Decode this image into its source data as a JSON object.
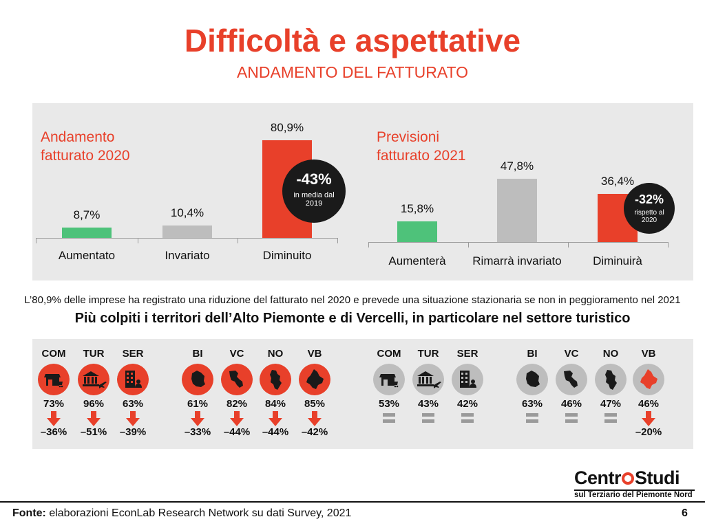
{
  "title": "Difficoltà e aspettative",
  "subtitle": "ANDAMENTO DEL FATTURATO",
  "chart_data": [
    {
      "type": "bar",
      "title": "Andamento fatturato 2020",
      "categories": [
        "Aumentato",
        "Invariato",
        "Diminuito"
      ],
      "values": [
        8.7,
        10.4,
        80.9
      ],
      "value_labels": [
        "8,7%",
        "10,4%",
        "80,9%"
      ],
      "colors": [
        "#4ec27a",
        "#bdbdbd",
        "#e8402a"
      ],
      "ylim": [
        0,
        85
      ],
      "annotation": {
        "value": "-43%",
        "text": "in media dal",
        "text2": "2019"
      }
    },
    {
      "type": "bar",
      "title": "Previsioni fatturato 2021",
      "categories": [
        "Aumenterà",
        "Rimarrà invariato",
        "Diminuirà"
      ],
      "values": [
        15.8,
        47.8,
        36.4
      ],
      "value_labels": [
        "15,8%",
        "47,8%",
        "36,4%"
      ],
      "colors": [
        "#4ec27a",
        "#bdbdbd",
        "#e8402a"
      ],
      "ylim": [
        0,
        85
      ],
      "annotation": {
        "value": "-32%",
        "text": "rispetto al",
        "text2": "2020"
      }
    }
  ],
  "chart1_title_line1": "Andamento",
  "chart1_title_line2": "fatturato 2020",
  "chart2_title_line1": "Previsioni",
  "chart2_title_line2": "fatturato 2021",
  "summary": "L’80,9% delle imprese ha registrato una riduzione del fatturato nel 2020 e prevede una situazione stazionaria se non in peggioramento nel 2021",
  "headline": "Più colpiti i territori dell’Alto Piemonte e di Vercelli, in particolare nel settore turistico",
  "sectors_2020": [
    {
      "label": "COM",
      "pct": "73%",
      "change": "–36%",
      "icon": "shop-icon"
    },
    {
      "label": "TUR",
      "pct": "96%",
      "change": "–51%",
      "icon": "museum-plane-icon"
    },
    {
      "label": "SER",
      "pct": "63%",
      "change": "–39%",
      "icon": "office-building-icon"
    }
  ],
  "territories_2020": [
    {
      "label": "BI",
      "pct": "61%",
      "change": "–33%",
      "icon": "map-bi-icon"
    },
    {
      "label": "VC",
      "pct": "82%",
      "change": "–44%",
      "icon": "map-vc-icon"
    },
    {
      "label": "NO",
      "pct": "84%",
      "change": "–44%",
      "icon": "map-no-icon"
    },
    {
      "label": "VB",
      "pct": "85%",
      "change": "–42%",
      "icon": "map-vb-icon"
    }
  ],
  "sectors_2021": [
    {
      "label": "COM",
      "pct": "53%"
    },
    {
      "label": "TUR",
      "pct": "43%"
    },
    {
      "label": "SER",
      "pct": "42%"
    }
  ],
  "territories_2021": [
    {
      "label": "BI",
      "pct": "63%"
    },
    {
      "label": "VC",
      "pct": "46%"
    },
    {
      "label": "NO",
      "pct": "47%"
    },
    {
      "label": "VB",
      "pct": "46%",
      "change": "–20%"
    }
  ],
  "logo": {
    "main_a": "Centr",
    "main_b": "Studi",
    "sub": "sul Terziario del Piemonte Nord"
  },
  "footer": {
    "label": "Fonte:",
    "text": " elaborazioni EconLab Research Network su dati Survey, 2021",
    "page": "6"
  },
  "colors": {
    "accent": "#e8402a",
    "green": "#4ec27a",
    "gray": "#bdbdbd",
    "dark": "#1a1a1a"
  }
}
